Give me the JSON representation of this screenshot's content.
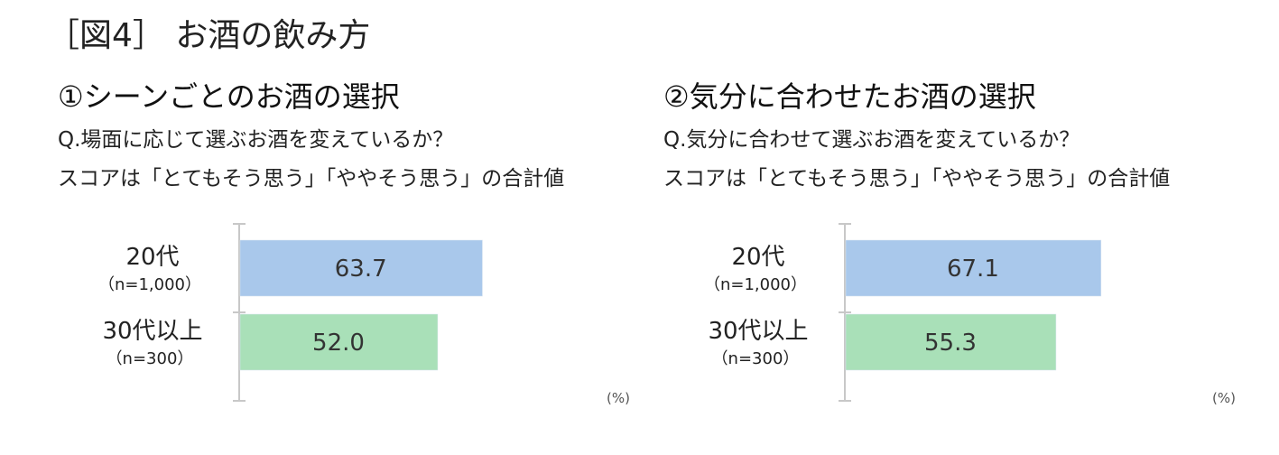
{
  "figure_title": "［図4］ お酒の飲み方",
  "chart_data": [
    {
      "type": "bar",
      "orientation": "horizontal",
      "title": "①シーンごとのお酒の選択",
      "question": "Q.場面に応じて選ぶお酒を変えているか？",
      "note": "スコアは「とてもそう思う」「ややそう思う」の合計値",
      "unit": "(%)",
      "xlim": [
        0,
        100
      ],
      "grid": false,
      "categories": [
        {
          "label": "20代",
          "sub": "（n=1,000）"
        },
        {
          "label": "30代以上",
          "sub": "（n=300）"
        }
      ],
      "values": [
        63.7,
        52.0
      ],
      "value_labels": [
        "63.7",
        "52.0"
      ],
      "colors": [
        "#a9c8eb",
        "#a9e0b8"
      ]
    },
    {
      "type": "bar",
      "orientation": "horizontal",
      "title": "②気分に合わせたお酒の選択",
      "question": "Q.気分に合わせて選ぶお酒を変えているか？",
      "note": "スコアは「とてもそう思う」「ややそう思う」の合計値",
      "unit": "(%)",
      "xlim": [
        0,
        100
      ],
      "grid": false,
      "categories": [
        {
          "label": "20代",
          "sub": "（n=1,000）"
        },
        {
          "label": "30代以上",
          "sub": "（n=300）"
        }
      ],
      "values": [
        67.1,
        55.3
      ],
      "value_labels": [
        "67.1",
        "55.3"
      ],
      "colors": [
        "#a9c8eb",
        "#a9e0b8"
      ]
    }
  ]
}
